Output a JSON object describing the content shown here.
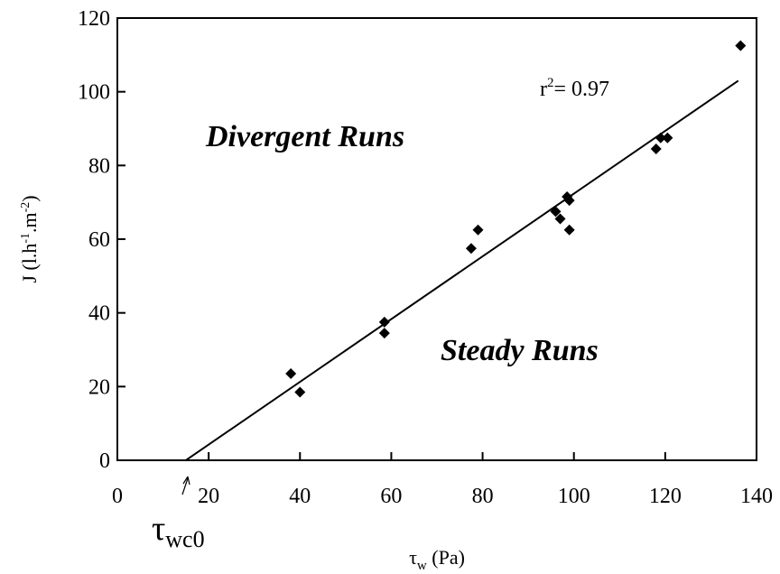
{
  "chart_data": {
    "type": "scatter",
    "title": "",
    "xlabel": {
      "main": "τ",
      "sub": "w",
      "rest": " (Pa)"
    },
    "ylabel": {
      "p1": "J (l.h",
      "s1": "-1",
      "p2": ".m",
      "s2": "-2",
      "p3": ")"
    },
    "xlim": [
      0,
      140
    ],
    "ylim": [
      0,
      120
    ],
    "x_ticks": [
      0,
      20,
      40,
      60,
      80,
      100,
      120,
      140
    ],
    "y_ticks": [
      0,
      20,
      40,
      60,
      80,
      100,
      120
    ],
    "points": [
      {
        "x": 38,
        "y": 23.5
      },
      {
        "x": 40,
        "y": 18.5
      },
      {
        "x": 58.5,
        "y": 37.5
      },
      {
        "x": 58.5,
        "y": 34.5
      },
      {
        "x": 77.5,
        "y": 57.5
      },
      {
        "x": 79,
        "y": 62.5
      },
      {
        "x": 96,
        "y": 67.5
      },
      {
        "x": 97,
        "y": 65.5
      },
      {
        "x": 98.5,
        "y": 71.5
      },
      {
        "x": 99,
        "y": 70.5
      },
      {
        "x": 99,
        "y": 62.5
      },
      {
        "x": 118,
        "y": 84.5
      },
      {
        "x": 119,
        "y": 87.5
      },
      {
        "x": 120.5,
        "y": 87.5
      },
      {
        "x": 136.5,
        "y": 112.5
      }
    ],
    "fit_line": {
      "x0": 15,
      "y0": 0,
      "x1": 136,
      "y1": 103
    },
    "annotations": {
      "r_squared": {
        "prefix": "r",
        "sup": "2",
        "rest": "=  0.97"
      },
      "divergent_region": "Divergent Runs",
      "steady_region": "Steady Runs",
      "threshold": {
        "main": "τ",
        "sub": "wc0"
      }
    },
    "grid": false,
    "legend": "none"
  }
}
